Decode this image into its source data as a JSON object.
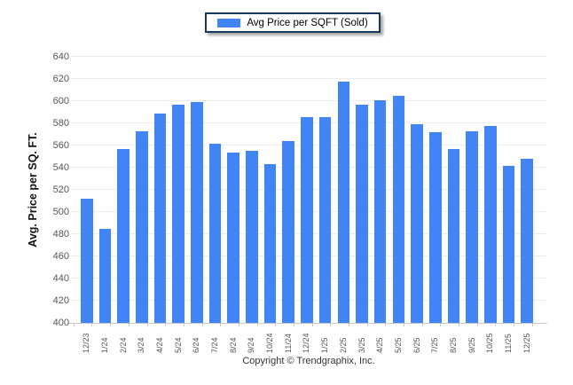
{
  "legend": {
    "label": "Avg Price per SQFT (Sold)"
  },
  "footer": {
    "text": "Copyright © Trendgraphix, Inc."
  },
  "colors": {
    "bar": "#4284f4",
    "legend_border": "#17375e",
    "gridline": "#ededed",
    "axis_line": "#c9c9c9",
    "tick_label": "#555555",
    "y_title": "#111111"
  },
  "chart_data": {
    "type": "bar",
    "title": "",
    "xlabel": "",
    "ylabel": "Avg. Price per SQ. FT.",
    "legend": [
      "Avg Price per SQFT (Sold)"
    ],
    "legend_position": "top-center",
    "grid": true,
    "ylim": [
      400,
      640
    ],
    "ytick_step": 20,
    "categories": [
      "12/23",
      "1/24",
      "2/24",
      "3/24",
      "4/24",
      "5/24",
      "6/24",
      "7/24",
      "8/24",
      "9/24",
      "10/24",
      "11/24",
      "12/24",
      "1/25",
      "2/25",
      "3/25",
      "4/25",
      "5/25",
      "6/25",
      "7/25",
      "8/25",
      "9/25",
      "10/25",
      "11/25",
      "12/25"
    ],
    "values": [
      512,
      485,
      557,
      573,
      589,
      597,
      599,
      562,
      554,
      555,
      543,
      564,
      586,
      586,
      618,
      597,
      601,
      605,
      579,
      572,
      557,
      573,
      578,
      542,
      548
    ]
  }
}
